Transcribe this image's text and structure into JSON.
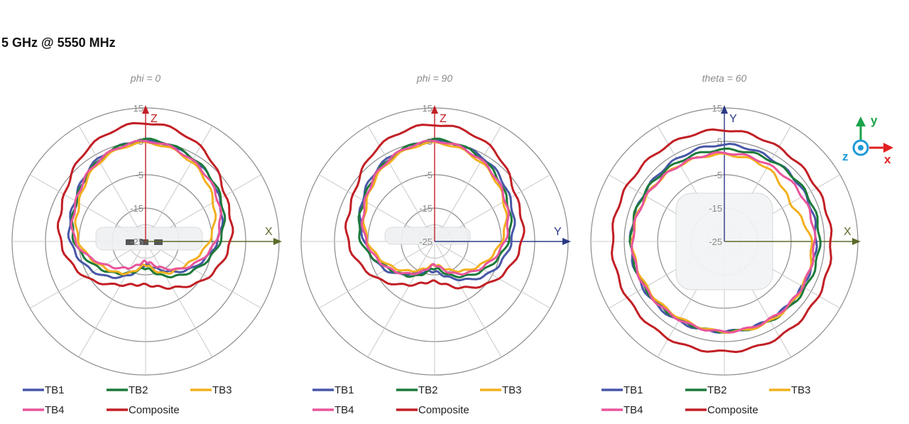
{
  "title": "5 GHz @ 5550 MHz",
  "orientation_key": {
    "x": "x",
    "y": "y",
    "z": "z"
  },
  "chart_data": [
    {
      "type": "polar-line",
      "title": "phi = 0",
      "axis_labels": {
        "vertical": "Z",
        "horizontal": "X"
      },
      "radial_ticks": [
        "15",
        "5",
        "-5",
        "-15",
        "-25"
      ],
      "rlim": [
        -25,
        15
      ],
      "grid": true,
      "legend_position": "bottom",
      "angles_deg": [
        0,
        30,
        60,
        90,
        120,
        150,
        180,
        210,
        240,
        270,
        300,
        330
      ],
      "series": [
        {
          "name": "TB1",
          "color": "#4857a8",
          "values": [
            5,
            3.5,
            0.5,
            -3.5,
            -9,
            -15,
            -18,
            -13,
            -7,
            -2.5,
            -0.5,
            3.5
          ]
        },
        {
          "name": "TB2",
          "color": "#1c7a3a",
          "values": [
            5.5,
            3.7,
            1,
            -2.7,
            -8,
            -13,
            -17,
            -14,
            -9,
            -3.7,
            -1,
            3
          ]
        },
        {
          "name": "TB3",
          "color": "#f2b01e",
          "values": [
            4.5,
            2.5,
            -1.5,
            -6,
            -11,
            -14,
            -18,
            -14,
            -10,
            -5,
            -2,
            2.5
          ]
        },
        {
          "name": "TB4",
          "color": "#e9559c",
          "values": [
            5,
            3,
            0,
            -4,
            -10,
            -16,
            -19,
            -16,
            -11,
            -4,
            -1,
            3
          ]
        },
        {
          "name": "Composite",
          "color": "#c21f25",
          "values": [
            10.5,
            7.8,
            2.6,
            0.5,
            -3.5,
            -9,
            -12,
            -10,
            -4,
            0.5,
            3,
            8
          ]
        }
      ]
    },
    {
      "type": "polar-line",
      "title": "phi = 90",
      "axis_labels": {
        "vertical": "Z",
        "horizontal": "Y"
      },
      "radial_ticks": [
        "15",
        "5",
        "-5",
        "-15",
        "-25"
      ],
      "rlim": [
        -25,
        15
      ],
      "grid": true,
      "legend_position": "bottom",
      "angles_deg": [
        0,
        30,
        60,
        90,
        120,
        150,
        180,
        210,
        240,
        270,
        300,
        330
      ],
      "series": [
        {
          "name": "TB1",
          "color": "#4857a8",
          "values": [
            5,
            4,
            1,
            -2,
            -6,
            -12,
            -16,
            -14,
            -8,
            -4,
            0,
            3.5
          ]
        },
        {
          "name": "TB2",
          "color": "#1c7a3a",
          "values": [
            5.5,
            3.5,
            0,
            -3,
            -8,
            -13,
            -17,
            -13,
            -9,
            -3,
            -0.5,
            3
          ]
        },
        {
          "name": "TB3",
          "color": "#f2b01e",
          "values": [
            4.5,
            2.5,
            -1,
            -5,
            -10,
            -15,
            -18,
            -15,
            -10,
            -5,
            -1.5,
            2.5
          ]
        },
        {
          "name": "TB4",
          "color": "#e9559c",
          "values": [
            5,
            3,
            -0.5,
            -4,
            -9,
            -14,
            -18,
            -14,
            -9,
            -4.5,
            -1,
            3
          ]
        },
        {
          "name": "Composite",
          "color": "#c21f25",
          "values": [
            10,
            8,
            3,
            1.2,
            -3,
            -9,
            -13,
            -10,
            -4,
            1,
            3,
            8
          ]
        }
      ]
    },
    {
      "type": "polar-line",
      "title": "theta = 60",
      "axis_labels": {
        "vertical": "Y",
        "horizontal": "X"
      },
      "radial_ticks": [
        "15",
        "5",
        "-5",
        "-15",
        "-25"
      ],
      "rlim": [
        -25,
        15
      ],
      "grid": true,
      "legend_position": "bottom",
      "angles_deg": [
        0,
        30,
        60,
        90,
        120,
        150,
        180,
        210,
        240,
        270,
        300,
        330
      ],
      "series": [
        {
          "name": "TB1",
          "color": "#4857a8",
          "values": [
            4,
            3.5,
            3,
            2.5,
            2,
            2,
            2,
            2.5,
            3,
            3,
            3,
            3.5
          ]
        },
        {
          "name": "TB2",
          "color": "#1c7a3a",
          "values": [
            2.5,
            3,
            3.5,
            3.5,
            3,
            2.5,
            2,
            2,
            2.5,
            3,
            3,
            2.5
          ]
        },
        {
          "name": "TB3",
          "color": "#f2b01e",
          "values": [
            1,
            0.5,
            -2,
            1,
            2,
            2.5,
            2,
            1.5,
            2,
            2.5,
            2,
            1.5
          ]
        },
        {
          "name": "TB4",
          "color": "#e9559c",
          "values": [
            1.5,
            1.5,
            2,
            2,
            2,
            2,
            2,
            2,
            2.5,
            2.5,
            2,
            1.5
          ]
        },
        {
          "name": "Composite",
          "color": "#c21f25",
          "values": [
            8.4,
            7.5,
            7,
            7,
            7.5,
            8,
            8,
            8.5,
            8.6,
            8.6,
            8.5,
            8.4
          ]
        }
      ]
    }
  ]
}
